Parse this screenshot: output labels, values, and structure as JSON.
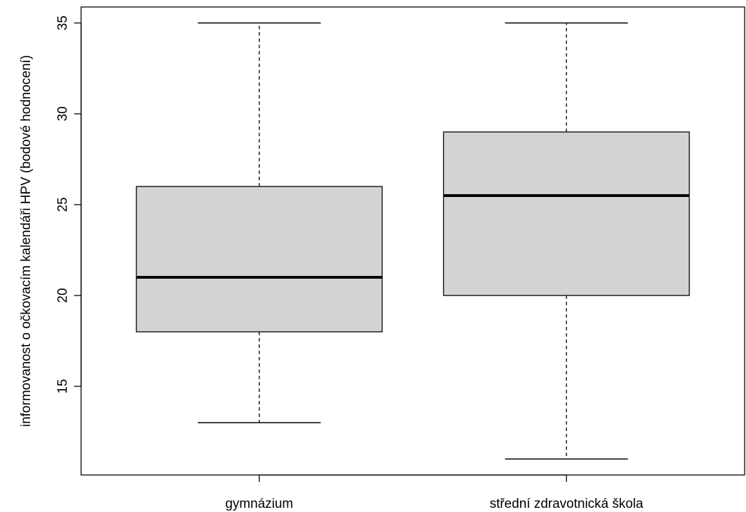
{
  "chart_data": {
    "type": "boxplot",
    "title": "",
    "xlabel": "",
    "ylabel": "informovanost o očkovacím kalendáři HPV (bodové hodnocení)",
    "categories": [
      "gymnázium",
      "střední zdravotnická škola"
    ],
    "boxes": [
      {
        "category": "gymnázium",
        "min": 13,
        "q1": 18,
        "median": 21,
        "q3": 26,
        "max": 35
      },
      {
        "category": "střední zdravotnická škola",
        "min": 11,
        "q1": 20,
        "median": 25.5,
        "q3": 29,
        "max": 35
      }
    ],
    "yticks": [
      15,
      20,
      25,
      30,
      35
    ],
    "ytick_labels": [
      "15",
      "20",
      "25",
      "30",
      "35"
    ],
    "ylim": [
      10.12,
      35.88
    ],
    "grid": false,
    "box_fill": "#d3d3d3",
    "line_color": "#000000"
  }
}
